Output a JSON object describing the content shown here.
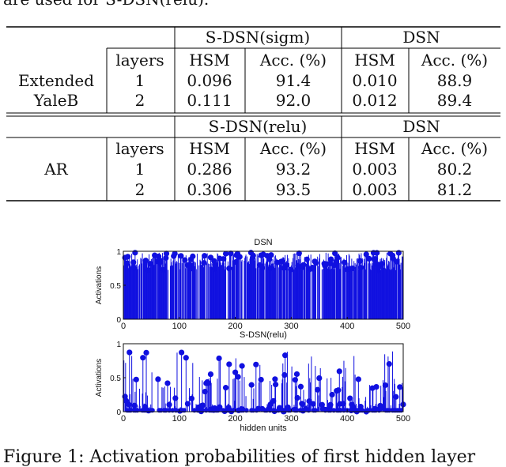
{
  "intro_text": "are used for S-DSN(relu).",
  "table": {
    "top_block": {
      "group_left": "S-DSN(sigm)",
      "group_right": "DSN",
      "header": [
        "layers",
        "HSM",
        "Acc. (%)",
        "HSM",
        "Acc. (%)"
      ],
      "dataset": [
        "Extended",
        "YaleB"
      ],
      "rows": [
        [
          "1",
          "0.096",
          "91.4",
          "0.010",
          "88.9"
        ],
        [
          "2",
          "0.111",
          "92.0",
          "0.012",
          "89.4"
        ]
      ]
    },
    "bottom_block": {
      "group_left": "S-DSN(relu)",
      "group_right": "DSN",
      "header": [
        "layers",
        "HSM",
        "Acc. (%)",
        "HSM",
        "Acc. (%)"
      ],
      "dataset": [
        "AR"
      ],
      "rows": [
        [
          "1",
          "0.286",
          "93.2",
          "0.003",
          "80.2"
        ],
        [
          "2",
          "0.306",
          "93.5",
          "0.003",
          "81.2"
        ]
      ]
    }
  },
  "chart_data": [
    {
      "type": "stem",
      "title": "DSN",
      "xlabel": "",
      "ylabel": "Activations",
      "xlim": [
        0,
        500
      ],
      "ylim": [
        0,
        1
      ],
      "xticks": [
        "0",
        "100",
        "200",
        "300",
        "400",
        "500"
      ],
      "yticks": [
        "0",
        "0.5",
        "1"
      ],
      "color": "#1010e0",
      "n_units": 500,
      "value_range": [
        0.72,
        0.98
      ],
      "stem_density": 0.85,
      "seed": 11
    },
    {
      "type": "stem",
      "title": "S-DSN(relu)",
      "xlabel": "hidden units",
      "ylabel": "Activations",
      "xlim": [
        0,
        500
      ],
      "ylim": [
        0,
        1
      ],
      "xticks": [
        "0",
        "100",
        "200",
        "300",
        "400",
        "500"
      ],
      "yticks": [
        "0",
        "0.5",
        "1"
      ],
      "color": "#1010e0",
      "n_units": 500,
      "value_range": [
        0.0,
        0.9
      ],
      "stem_density": 0.55,
      "seed": 29
    }
  ],
  "caption": "Figure 1: Activation probabilities of first hidden layer"
}
